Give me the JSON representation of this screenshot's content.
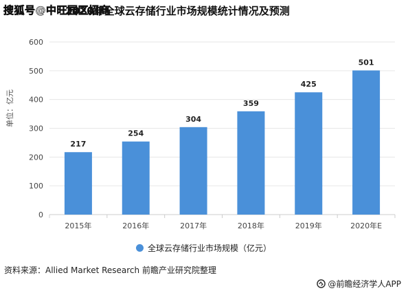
{
  "watermark": {
    "top": "搜狐号@中旺园区招商"
  },
  "source": "资料来源：Allied Market Research 前瞻产业研究院整理",
  "brand": "@前瞻经济学人APP",
  "colors": {
    "bar": "#4a90d9",
    "grid": "#e6e6e6",
    "axis": "#cccccc"
  },
  "chart_data": {
    "type": "bar",
    "title": "2020年全球云存储行业市场规模统计情况及预测",
    "ylabel": "单位：亿元",
    "xlabel": "",
    "categories": [
      "2015年",
      "2016年",
      "2017年",
      "2018年",
      "2019年",
      "2020年E"
    ],
    "series": [
      {
        "name": "全球云存储行业市场规模（亿元）",
        "values": [
          217,
          254,
          304,
          359,
          425,
          501
        ]
      }
    ],
    "ylim": [
      0,
      600
    ],
    "yticks": [
      0,
      100,
      200,
      300,
      400,
      500,
      600
    ],
    "grid": true,
    "legend": "bottom",
    "data_labels": true
  }
}
